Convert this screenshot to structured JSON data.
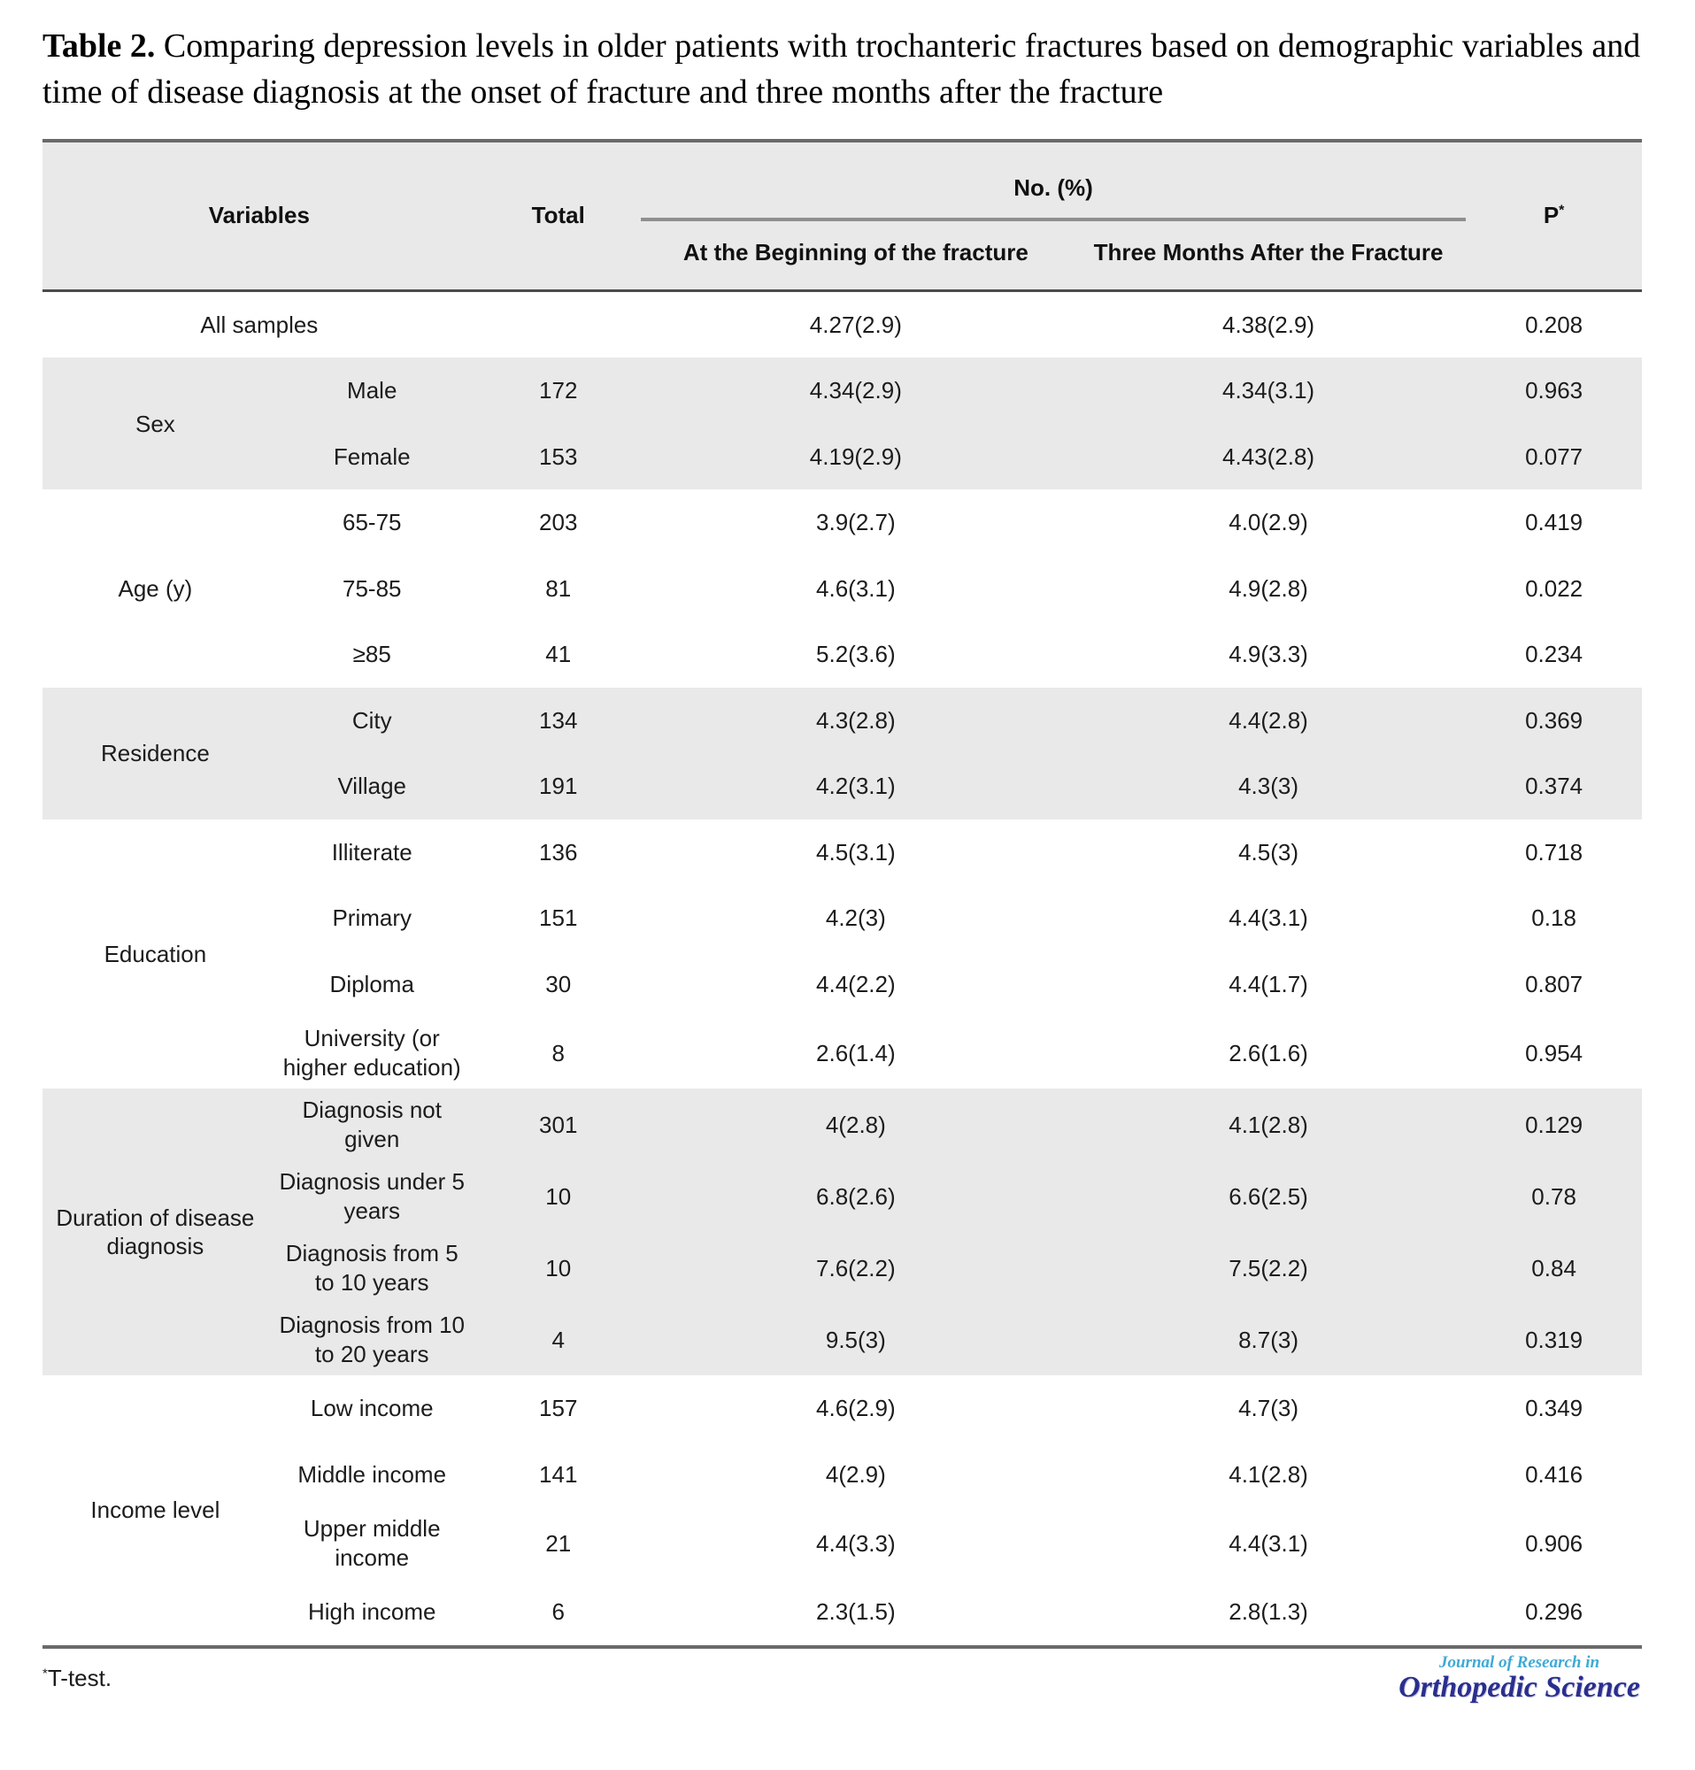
{
  "title": {
    "prefix": "Table 2.",
    "text": "Comparing depression levels in older patients with trochanteric fractures based on demographic variables and time of disease diagnosis at the onset of fracture and three months after the fracture"
  },
  "table": {
    "header": {
      "variables": "Variables",
      "total": "Total",
      "no_pct": "No. (%)",
      "col_beginning": "At the Beginning of the fracture",
      "col_three_months": "Three Months After the Fracture",
      "p": "P",
      "p_sup": "*"
    },
    "all_samples": {
      "label": "All samples",
      "total": "",
      "beginning": "4.27(2.9)",
      "three_months": "4.38(2.9)",
      "p": "0.208"
    },
    "groups": [
      {
        "label": "Sex",
        "rows": [
          {
            "category": "Male",
            "total": "172",
            "beginning": "4.34(2.9)",
            "three_months": "4.34(3.1)",
            "p": "0.963"
          },
          {
            "category": "Female",
            "total": "153",
            "beginning": "4.19(2.9)",
            "three_months": "4.43(2.8)",
            "p": "0.077"
          }
        ]
      },
      {
        "label": "Age (y)",
        "rows": [
          {
            "category": "65-75",
            "total": "203",
            "beginning": "3.9(2.7)",
            "three_months": "4.0(2.9)",
            "p": "0.419"
          },
          {
            "category": "75-85",
            "total": "81",
            "beginning": "4.6(3.1)",
            "three_months": "4.9(2.8)",
            "p": "0.022"
          },
          {
            "category": "≥85",
            "total": "41",
            "beginning": "5.2(3.6)",
            "three_months": "4.9(3.3)",
            "p": "0.234"
          }
        ]
      },
      {
        "label": "Residence",
        "rows": [
          {
            "category": "City",
            "total": "134",
            "beginning": "4.3(2.8)",
            "three_months": "4.4(2.8)",
            "p": "0.369"
          },
          {
            "category": "Village",
            "total": "191",
            "beginning": "4.2(3.1)",
            "three_months": "4.3(3)",
            "p": "0.374"
          }
        ]
      },
      {
        "label": "Education",
        "rows": [
          {
            "category": "Illiterate",
            "total": "136",
            "beginning": "4.5(3.1)",
            "three_months": "4.5(3)",
            "p": "0.718"
          },
          {
            "category": "Primary",
            "total": "151",
            "beginning": "4.2(3)",
            "three_months": "4.4(3.1)",
            "p": "0.18"
          },
          {
            "category": "Diploma",
            "total": "30",
            "beginning": "4.4(2.2)",
            "three_months": "4.4(1.7)",
            "p": "0.807"
          },
          {
            "category": "University (or higher education)",
            "total": "8",
            "beginning": "2.6(1.4)",
            "three_months": "2.6(1.6)",
            "p": "0.954"
          }
        ]
      },
      {
        "label": "Duration of disease diagnosis",
        "rows": [
          {
            "category": "Diagnosis not given",
            "total": "301",
            "beginning": "4(2.8)",
            "three_months": "4.1(2.8)",
            "p": "0.129"
          },
          {
            "category": "Diagnosis under 5 years",
            "total": "10",
            "beginning": "6.8(2.6)",
            "three_months": "6.6(2.5)",
            "p": "0.78"
          },
          {
            "category": "Diagnosis from 5 to 10 years",
            "total": "10",
            "beginning": "7.6(2.2)",
            "three_months": "7.5(2.2)",
            "p": "0.84"
          },
          {
            "category": "Diagnosis from 10 to 20 years",
            "total": "4",
            "beginning": "9.5(3)",
            "three_months": "8.7(3)",
            "p": "0.319"
          }
        ]
      },
      {
        "label": "Income level",
        "rows": [
          {
            "category": "Low income",
            "total": "157",
            "beginning": "4.6(2.9)",
            "three_months": "4.7(3)",
            "p": "0.349"
          },
          {
            "category": "Middle income",
            "total": "141",
            "beginning": "4(2.9)",
            "three_months": "4.1(2.8)",
            "p": "0.416"
          },
          {
            "category": "Upper middle income",
            "total": "21",
            "beginning": "4.4(3.3)",
            "three_months": "4.4(3.1)",
            "p": "0.906"
          },
          {
            "category": "High income",
            "total": "6",
            "beginning": "2.3(1.5)",
            "three_months": "2.8(1.3)",
            "p": "0.296"
          }
        ]
      }
    ]
  },
  "footnote": {
    "sup": "*",
    "text": "T-test."
  },
  "logo": {
    "line1": "Journal of Research in",
    "line2": "Orthopedic Science"
  },
  "colors": {
    "stripe": "#e9e9e9",
    "rule_heavy": "#6a6a6a",
    "rule_dark": "#4b4b4b",
    "rule_mid": "#8f8f8f",
    "text": "#1c1c1c",
    "logo_light_blue": "#3fa9d5",
    "logo_navy": "#2a2f8e"
  }
}
